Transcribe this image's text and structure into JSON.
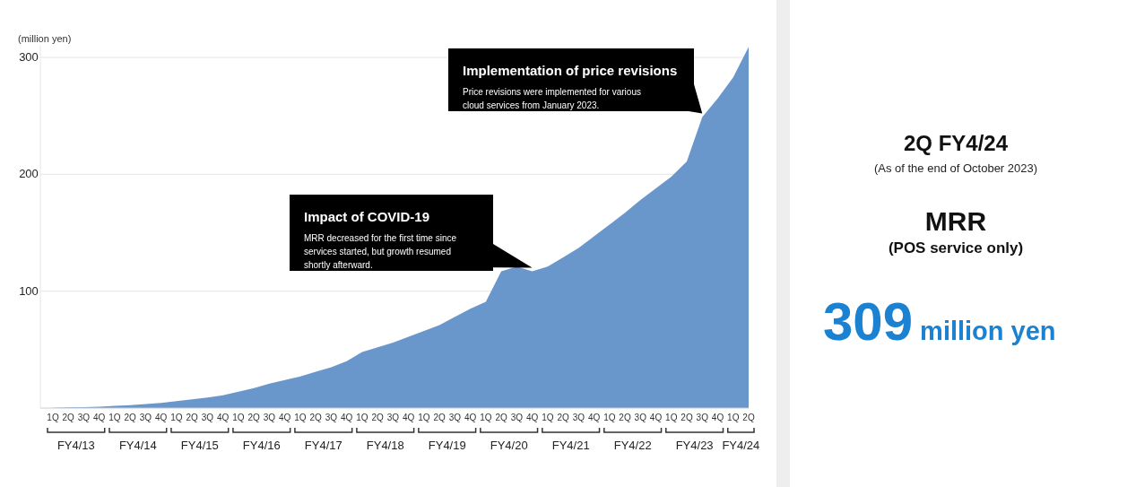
{
  "chart_data": [
    {
      "type": "area",
      "ylabel": "(million yen)",
      "categories": [
        "1Q",
        "2Q",
        "3Q",
        "4Q",
        "1Q",
        "2Q",
        "3Q",
        "4Q",
        "1Q",
        "2Q",
        "3Q",
        "4Q",
        "1Q",
        "2Q",
        "3Q",
        "4Q",
        "1Q",
        "2Q",
        "3Q",
        "4Q",
        "1Q",
        "2Q",
        "3Q",
        "4Q",
        "1Q",
        "2Q",
        "3Q",
        "4Q",
        "1Q",
        "2Q",
        "3Q",
        "4Q",
        "1Q",
        "2Q",
        "3Q",
        "4Q",
        "1Q",
        "2Q",
        "3Q",
        "4Q",
        "1Q",
        "2Q",
        "3Q",
        "4Q",
        "1Q",
        "2Q"
      ],
      "series": [
        {
          "color": "#6a97cb",
          "values": [
            0.2,
            0.5,
            0.8,
            1.2,
            2,
            2.5,
            3.5,
            4.5,
            6,
            7.5,
            9,
            11,
            14,
            17,
            21,
            24,
            27,
            31,
            35,
            40,
            48,
            52,
            56,
            61,
            66,
            71,
            78,
            85,
            91,
            117,
            121,
            117,
            121,
            129,
            137,
            147,
            157,
            167,
            178,
            188,
            198,
            211,
            249,
            265,
            283,
            309
          ]
        }
      ],
      "ylim": [
        0,
        310
      ],
      "yticks": [
        100,
        200,
        300
      ],
      "grid": "y",
      "annotations": [
        "Impact of COVID-19",
        "MRR decreased for the first time since services started, but growth resumed shortly afterward.",
        "Implementation of price revisions",
        "Price revisions were implemented for various cloud services from January 2023.",
        "FY4/13",
        "FY4/14",
        "FY4/15",
        "FY4/16",
        "FY4/17",
        "FY4/18",
        "FY4/19",
        "FY4/20",
        "FY4/21",
        "FY4/22",
        "FY4/23",
        "FY4/24"
      ]
    },
    {
      "type": "other",
      "title": "2Q FY4/24",
      "subtitle": "(As of the end of October 2023)",
      "annotations": [
        "MRR",
        "(POS service only)",
        "309",
        "million yen"
      ]
    }
  ]
}
